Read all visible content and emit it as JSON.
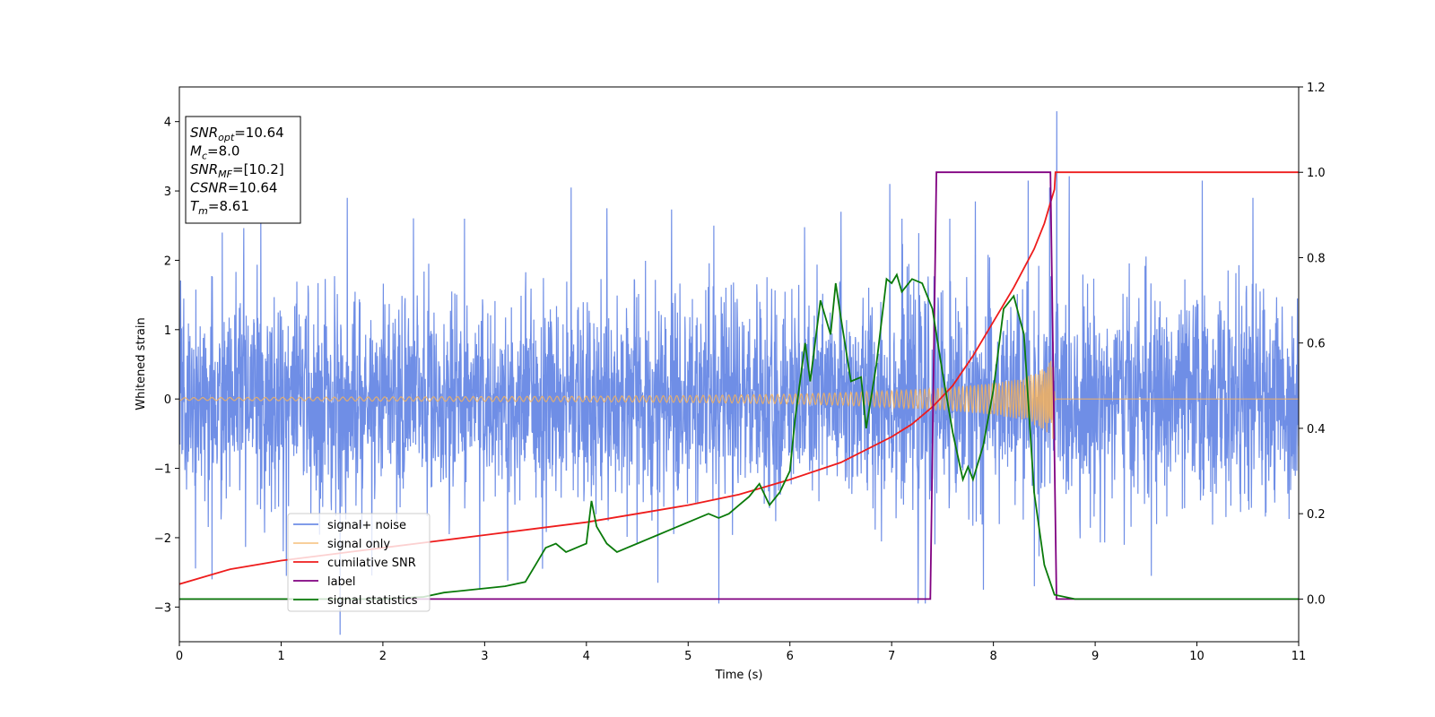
{
  "chart_data": {
    "type": "line",
    "xlabel": "Time (s)",
    "ylabel": "Whitened strain",
    "xlim": [
      0,
      11
    ],
    "ylim_left": [
      -3.5,
      4.5
    ],
    "ylim_right": [
      -0.1,
      1.2
    ],
    "x_ticks": [
      "0",
      "1",
      "2",
      "3",
      "4",
      "5",
      "6",
      "7",
      "8",
      "9",
      "10",
      "11"
    ],
    "y_left_ticks": [
      "−3",
      "−2",
      "−1",
      "0",
      "1",
      "2",
      "3",
      "4"
    ],
    "y_right_ticks": [
      "0.0",
      "0.2",
      "0.4",
      "0.6",
      "0.8",
      "1.0",
      "1.2"
    ],
    "grid": false,
    "legend_position": "lower-left",
    "info_box": {
      "lines": [
        {
          "sym": "SNR",
          "sub": "opt",
          "val": "=10.64"
        },
        {
          "sym": "M",
          "sub": "c",
          "val": "=8.0"
        },
        {
          "sym": "SNR",
          "sub": "MF",
          "val": "=[10.2]"
        },
        {
          "sym": "CSNR",
          "sub": "",
          "val": "=10.64"
        },
        {
          "sym": "T",
          "sub": "m",
          "val": "=8.61"
        }
      ]
    },
    "series": [
      {
        "name": "signal+ noise",
        "axis": "left",
        "color": "#6f8ee6",
        "description_kind": "noise",
        "noise_std": 0.75,
        "peak_points": [
          [
            0.42,
            2.4
          ],
          [
            0.8,
            2.6
          ],
          [
            1.05,
            2.85
          ],
          [
            1.65,
            2.9
          ],
          [
            2.8,
            2.6
          ],
          [
            3.85,
            3.05
          ],
          [
            4.2,
            2.75
          ],
          [
            5.25,
            2.5
          ],
          [
            6.5,
            2.7
          ],
          [
            6.98,
            3.1
          ],
          [
            7.1,
            2.6
          ],
          [
            7.57,
            2.6
          ],
          [
            7.82,
            2.85
          ],
          [
            8.34,
            3.15
          ],
          [
            8.55,
            3.05
          ],
          [
            8.62,
            4.15
          ],
          [
            10.05,
            3.15
          ],
          [
            10.55,
            2.9
          ],
          [
            0.32,
            -2.6
          ],
          [
            1.05,
            -2.55
          ],
          [
            2.95,
            -2.75
          ],
          [
            4.7,
            -2.65
          ],
          [
            5.3,
            -2.95
          ],
          [
            7.26,
            -2.95
          ],
          [
            7.33,
            -2.95
          ],
          [
            7.9,
            -2.75
          ],
          [
            8.4,
            -2.7
          ],
          [
            9.55,
            -2.55
          ]
        ]
      },
      {
        "name": "signal only",
        "axis": "left",
        "color": "#f5b15c",
        "description_kind": "chirp",
        "amplitude_points": [
          [
            0,
            0.02
          ],
          [
            2,
            0.03
          ],
          [
            4,
            0.04
          ],
          [
            5,
            0.05
          ],
          [
            6,
            0.07
          ],
          [
            6.5,
            0.09
          ],
          [
            7,
            0.12
          ],
          [
            7.5,
            0.16
          ],
          [
            8,
            0.23
          ],
          [
            8.3,
            0.3
          ],
          [
            8.5,
            0.45
          ],
          [
            8.6,
            0.6
          ],
          [
            8.61,
            0
          ]
        ]
      },
      {
        "name": "cumilative SNR",
        "axis": "right",
        "color": "#ee1c1c",
        "x": [
          0,
          0.5,
          1,
          1.5,
          2,
          2.5,
          3,
          3.5,
          4,
          4.5,
          5,
          5.5,
          6,
          6.5,
          7,
          7.2,
          7.4,
          7.6,
          7.8,
          8.0,
          8.2,
          8.4,
          8.5,
          8.55,
          8.6,
          8.61,
          9,
          10,
          11
        ],
        "y": [
          0.035,
          0.07,
          0.09,
          0.105,
          0.12,
          0.135,
          0.15,
          0.165,
          0.18,
          0.2,
          0.22,
          0.245,
          0.28,
          0.32,
          0.38,
          0.41,
          0.45,
          0.5,
          0.57,
          0.65,
          0.73,
          0.82,
          0.88,
          0.92,
          0.96,
          1.0,
          1.0,
          1.0,
          1.0
        ]
      },
      {
        "name": "label",
        "axis": "right",
        "color": "#800080",
        "x": [
          0,
          7.38,
          7.44,
          8.56,
          8.62,
          11
        ],
        "y": [
          0,
          0,
          1,
          1,
          0,
          0
        ]
      },
      {
        "name": "signal statistics",
        "axis": "right",
        "color": "#0a7a0a",
        "x": [
          0,
          1,
          2,
          2.4,
          2.6,
          2.8,
          3.0,
          3.2,
          3.4,
          3.5,
          3.6,
          3.7,
          3.8,
          3.9,
          4.0,
          4.05,
          4.1,
          4.2,
          4.3,
          4.4,
          4.5,
          4.6,
          4.7,
          4.8,
          4.9,
          5.0,
          5.1,
          5.2,
          5.3,
          5.4,
          5.5,
          5.6,
          5.7,
          5.8,
          5.9,
          6.0,
          6.05,
          6.15,
          6.2,
          6.3,
          6.4,
          6.45,
          6.5,
          6.6,
          6.7,
          6.75,
          6.85,
          6.95,
          7.0,
          7.05,
          7.1,
          7.2,
          7.3,
          7.4,
          7.5,
          7.6,
          7.7,
          7.75,
          7.8,
          7.9,
          8.0,
          8.1,
          8.2,
          8.3,
          8.4,
          8.5,
          8.6,
          8.8,
          9,
          10,
          11
        ],
        "y": [
          0,
          0,
          0,
          0.005,
          0.015,
          0.02,
          0.025,
          0.03,
          0.04,
          0.08,
          0.12,
          0.13,
          0.11,
          0.12,
          0.13,
          0.23,
          0.17,
          0.13,
          0.11,
          0.12,
          0.13,
          0.14,
          0.15,
          0.16,
          0.17,
          0.18,
          0.19,
          0.2,
          0.19,
          0.2,
          0.22,
          0.24,
          0.27,
          0.22,
          0.25,
          0.3,
          0.42,
          0.6,
          0.51,
          0.7,
          0.62,
          0.74,
          0.66,
          0.51,
          0.52,
          0.4,
          0.55,
          0.75,
          0.74,
          0.76,
          0.72,
          0.75,
          0.74,
          0.68,
          0.53,
          0.39,
          0.28,
          0.31,
          0.28,
          0.36,
          0.49,
          0.68,
          0.71,
          0.62,
          0.25,
          0.08,
          0.01,
          0.0,
          0.0,
          0.0,
          0.0
        ]
      }
    ]
  }
}
